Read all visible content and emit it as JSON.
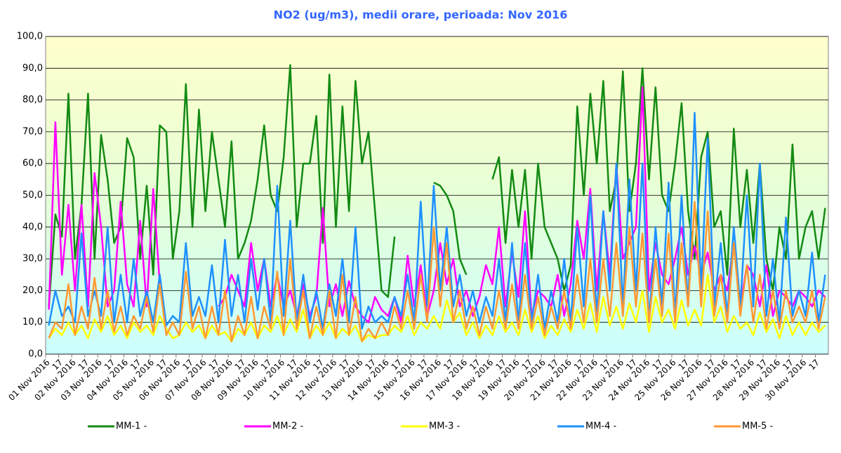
{
  "chart_data": {
    "type": "line",
    "title": "NO2 (ug/m3), medii orare, perioada:  Nov 2016",
    "categories": [
      "01 Nov 2016",
      null,
      "17",
      null,
      "02 Nov 2016",
      null,
      "17",
      null,
      "03 Nov 2016",
      null,
      "17",
      null,
      "04 Nov 2016",
      null,
      "17",
      null,
      "05 Nov 2016",
      null,
      "17",
      null,
      "06 Nov 2016",
      null,
      "17",
      null,
      "07 Nov 2016",
      null,
      "17",
      null,
      "08 Nov 2016",
      null,
      "17",
      null,
      "09 Nov 2016",
      null,
      "17",
      null,
      "10 Nov 2016",
      null,
      "17",
      null,
      "11 Nov 2016",
      null,
      "17",
      null,
      "12 Nov 2016",
      null,
      "17",
      null,
      "13 Nov 2016",
      null,
      "17",
      null,
      "14 Nov 2016",
      null,
      "17",
      null,
      "15 Nov 2016",
      null,
      "17",
      null,
      "16 Nov 2016",
      null,
      "17",
      null,
      "17 Nov 2016",
      null,
      "17",
      null,
      "18 Nov 2016",
      null,
      "17",
      null,
      "19 Nov 2016",
      null,
      "17",
      null,
      "20 Nov 2016",
      null,
      "17",
      null,
      "21 Nov 2016",
      null,
      "17",
      null,
      "22 Nov 2016",
      null,
      "17",
      null,
      "23 Nov 2016",
      null,
      "17",
      null,
      "24 Nov 2016",
      null,
      "17",
      null,
      "25 Nov 2016",
      null,
      "17",
      null,
      "26 Nov 2016",
      null,
      "17",
      null,
      "27 Nov 2016",
      null,
      "17",
      null,
      "28 Nov 2016",
      null,
      "17",
      null,
      "29 Nov 2016",
      null,
      "17",
      null,
      "30 Nov 2016",
      null,
      "17",
      null
    ],
    "series": [
      {
        "name": "MM-1 -",
        "color": "#138a13",
        "values": [
          15,
          44,
          37,
          82,
          30,
          47,
          82,
          30,
          69,
          55,
          35,
          40,
          68,
          62,
          30,
          53,
          25,
          72,
          70,
          30,
          45,
          85,
          40,
          77,
          45,
          70,
          55,
          40,
          67,
          30,
          35,
          42,
          55,
          72,
          50,
          45,
          62,
          91,
          40,
          60,
          60,
          75,
          35,
          88,
          40,
          78,
          45,
          86,
          60,
          70,
          45,
          20,
          18,
          37,
          null,
          null,
          null,
          null,
          null,
          54,
          53,
          50,
          45,
          30,
          25,
          null,
          42,
          null,
          55,
          62,
          35,
          58,
          40,
          58,
          30,
          60,
          40,
          35,
          30,
          20,
          28,
          78,
          50,
          82,
          60,
          86,
          45,
          55,
          89,
          45,
          60,
          90,
          55,
          84,
          50,
          45,
          60,
          79,
          45,
          30,
          62,
          70,
          40,
          45,
          25,
          71,
          40,
          58,
          35,
          60,
          30,
          20,
          40,
          30,
          66,
          30,
          40,
          45,
          30,
          46
        ]
      },
      {
        "name": "MM-2 -",
        "color": "#ff00ff",
        "values": [
          14,
          73,
          25,
          47,
          20,
          47,
          15,
          57,
          40,
          15,
          20,
          48,
          22,
          15,
          42,
          15,
          52,
          22,
          null,
          null,
          null,
          null,
          null,
          null,
          null,
          null,
          15,
          18,
          25,
          20,
          15,
          35,
          20,
          30,
          15,
          25,
          15,
          20,
          12,
          22,
          12,
          18,
          46,
          15,
          22,
          12,
          23,
          15,
          12,
          10,
          18,
          14,
          12,
          18,
          10,
          31,
          15,
          28,
          12,
          20,
          35,
          22,
          30,
          15,
          20,
          12,
          18,
          28,
          22,
          40,
          15,
          32,
          18,
          45,
          12,
          20,
          18,
          15,
          25,
          12,
          22,
          42,
          30,
          52,
          20,
          45,
          25,
          60,
          30,
          35,
          40,
          84,
          20,
          35,
          25,
          22,
          30,
          40,
          25,
          34,
          25,
          32,
          20,
          25,
          20,
          35,
          15,
          28,
          25,
          15,
          28,
          12,
          20,
          18,
          15,
          20,
          18,
          15,
          20,
          18
        ]
      },
      {
        "name": "MM-3 -",
        "color": "#ffff00",
        "values": [
          5,
          8,
          6,
          10,
          6,
          9,
          5,
          11,
          7,
          12,
          6,
          9,
          5,
          10,
          7,
          9,
          6,
          12,
          8,
          5,
          6,
          10,
          7,
          9,
          5,
          9,
          6,
          7,
          4,
          8,
          6,
          10,
          5,
          9,
          7,
          12,
          6,
          11,
          7,
          14,
          5,
          9,
          6,
          10,
          5,
          8,
          6,
          9,
          4,
          6,
          5,
          6,
          6,
          9,
          7,
          12,
          6,
          10,
          8,
          12,
          8,
          17,
          10,
          13,
          6,
          10,
          5,
          9,
          6,
          12,
          7,
          10,
          6,
          14,
          7,
          12,
          5,
          9,
          6,
          11,
          7,
          14,
          8,
          16,
          7,
          18,
          9,
          15,
          8,
          16,
          10,
          20,
          7,
          18,
          10,
          14,
          8,
          17,
          9,
          14,
          9,
          25,
          10,
          15,
          7,
          12,
          8,
          10,
          6,
          13,
          7,
          11,
          5,
          12,
          6,
          10,
          6,
          10,
          7,
          9
        ]
      },
      {
        "name": "MM-4 -",
        "color": "#1e90ff",
        "values": [
          9,
          20,
          12,
          15,
          10,
          38,
          12,
          20,
          12,
          40,
          10,
          25,
          10,
          30,
          12,
          20,
          10,
          25,
          9,
          12,
          10,
          35,
          12,
          18,
          12,
          28,
          10,
          36,
          12,
          25,
          10,
          30,
          14,
          30,
          10,
          53,
          12,
          42,
          10,
          25,
          10,
          20,
          8,
          22,
          12,
          30,
          10,
          40,
          8,
          15,
          10,
          12,
          10,
          18,
          12,
          25,
          10,
          48,
          15,
          53,
          20,
          40,
          15,
          25,
          12,
          20,
          10,
          18,
          12,
          30,
          10,
          35,
          10,
          35,
          10,
          25,
          8,
          20,
          10,
          30,
          10,
          40,
          15,
          50,
          12,
          45,
          20,
          60,
          15,
          55,
          20,
          60,
          10,
          40,
          15,
          54,
          12,
          50,
          15,
          76,
          20,
          68,
          15,
          35,
          12,
          40,
          15,
          50,
          15,
          60,
          12,
          30,
          10,
          43,
          12,
          20,
          12,
          32,
          10,
          25
        ]
      },
      {
        "name": "MM-5 -",
        "color": "#ff9933",
        "values": [
          5,
          10,
          8,
          22,
          6,
          15,
          8,
          24,
          8,
          20,
          7,
          15,
          6,
          12,
          8,
          18,
          7,
          22,
          6,
          10,
          6,
          26,
          8,
          15,
          5,
          15,
          6,
          20,
          4,
          12,
          6,
          18,
          5,
          15,
          8,
          26,
          6,
          30,
          8,
          20,
          5,
          15,
          6,
          20,
          5,
          25,
          6,
          18,
          4,
          8,
          5,
          10,
          6,
          15,
          8,
          20,
          8,
          25,
          10,
          40,
          15,
          35,
          10,
          20,
          8,
          15,
          6,
          15,
          8,
          20,
          8,
          22,
          8,
          25,
          8,
          18,
          6,
          15,
          8,
          20,
          8,
          25,
          10,
          30,
          10,
          30,
          12,
          35,
          12,
          40,
          15,
          38,
          10,
          30,
          12,
          38,
          10,
          35,
          15,
          48,
          15,
          45,
          12,
          25,
          10,
          35,
          12,
          28,
          10,
          25,
          8,
          20,
          8,
          20,
          10,
          15,
          10,
          20,
          8,
          18
        ]
      }
    ],
    "ylim": [
      0,
      100
    ],
    "yticks": [
      {
        "value": 0,
        "label": "0,0"
      },
      {
        "value": 10,
        "label": "10,0"
      },
      {
        "value": 20,
        "label": "20,0"
      },
      {
        "value": 30,
        "label": "30,0"
      },
      {
        "value": 40,
        "label": "40,0"
      },
      {
        "value": 50,
        "label": "50,0"
      },
      {
        "value": 60,
        "label": "60,0"
      },
      {
        "value": 70,
        "label": "70,0"
      },
      {
        "value": 80,
        "label": "80,0"
      },
      {
        "value": 90,
        "label": "90,0"
      },
      {
        "value": 100,
        "label": "100,0"
      }
    ],
    "grid": true
  }
}
